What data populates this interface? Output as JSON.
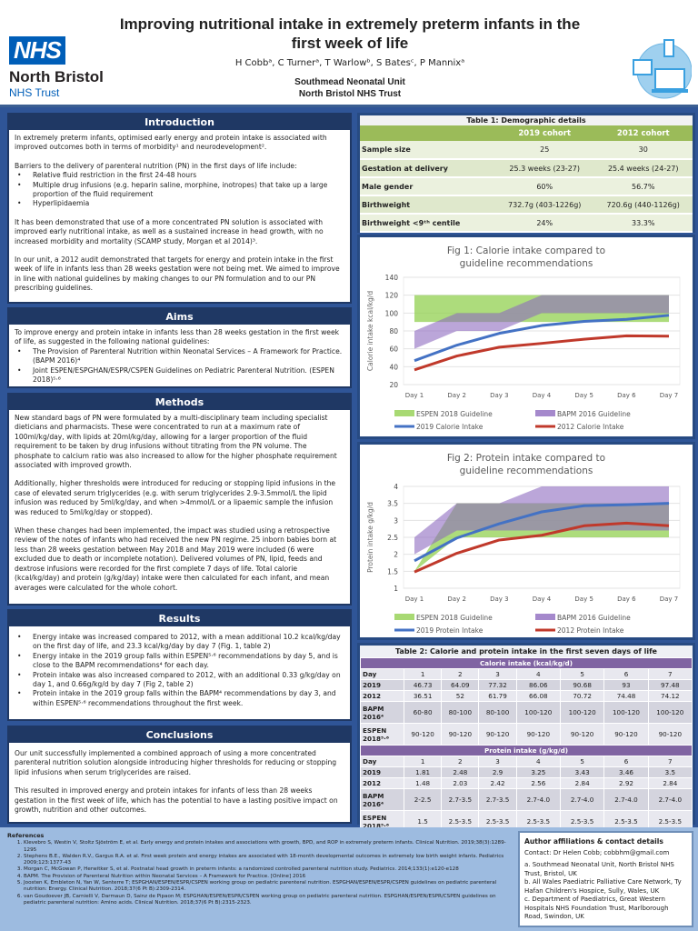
{
  "header": {
    "title": "Improving nutritional intake in extremely preterm infants in the first week of life",
    "authors": "H Cobbᵃ, C Turnerᵃ, T Warlowᵇ, S Batesᶜ, P Mannixᵃ",
    "unit_line1": "Southmead Neonatal Unit",
    "unit_line2": "North Bristol NHS Trust",
    "logo_nhs": "NHS",
    "logo_org": "North Bristol",
    "logo_trust": "NHS Trust"
  },
  "introduction": {
    "heading": "Introduction",
    "p1": "In extremely preterm infants, optimised early energy and protein intake is associated with improved outcomes both in terms of morbidity¹ and neurodevelopment².",
    "p2": "Barriers to the delivery of parenteral nutrition (PN) in the first days of life include:",
    "bullets": [
      "Relative fluid restriction in the first 24-48 hours",
      "Multiple drug infusions (e.g. heparin saline, morphine, inotropes) that take up a large proportion of the fluid requirement",
      "Hyperlipidaemia"
    ],
    "p3": "It has been demonstrated that use of a more concentrated PN solution is associated with improved early nutritional intake, as well as a sustained increase in head growth, with no increased morbidity and mortality (SCAMP study, Morgan et al 2014)³.",
    "p4": "In our unit, a 2012 audit demonstrated that targets for energy and protein intake in the first week of life in infants less than 28 weeks gestation were not being met. We aimed to improve in line with national guidelines by making changes to our PN formulation and to our PN prescribing guidelines."
  },
  "aims": {
    "heading": "Aims",
    "p1": "To improve energy and protein intake in infants less than 28 weeks gestation in the first week of life, as suggested in the following national guidelines:",
    "bullets": [
      "The Provision of Parenteral Nutrition within Neonatal Services – A Framework for Practice. (BAPM 2016)⁴",
      "Joint ESPEN/ESPGHAN/ESPR/CSPEN Guidelines on Pediatric Parenteral Nutrition. (ESPEN 2018)⁵·⁶"
    ]
  },
  "methods": {
    "heading": "Methods",
    "p1": "New standard bags of PN were formulated by a multi-disciplinary team including specialist dieticians and pharmacists. These were concentrated to run at a maximum rate of 100ml/kg/day, with lipids at 20ml/kg/day, allowing for a larger proportion of the fluid requirement to be taken by drug infusions without titrating from the PN volume. The phosphate to calcium ratio was also increased to allow for the higher phosphate requirement associated with improved growth.",
    "p2": "Additionally, higher thresholds were introduced for reducing or stopping lipid infusions in the case of elevated serum triglycerides (e.g. with serum triglycerides 2.9-3.5mmol/L the lipid infusion was reduced by 5ml/kg/day, and when >4mmol/L or a lipaemic sample the infusion was reduced to 5ml/kg/day or stopped).",
    "p3": "When these changes had been implemented, the impact was studied using a retrospective review of the notes of infants who had received the new PN regime. 25 inborn babies born at less than 28 weeks gestation between May 2018 and May 2019 were included (6 were excluded due to death or incomplete notation). Delivered volumes of PN, lipid, feeds and dextrose infusions were recorded for the first complete 7 days of life. Total calorie (kcal/kg/day) and protein (g/kg/day) intake were then calculated for each infant, and mean averages were calculated for the whole cohort."
  },
  "results": {
    "heading": "Results",
    "bullets": [
      "Energy intake was increased compared to 2012, with a mean additional 10.2 kcal/kg/day on the first day of life, and 23.3 kcal/kg/day by day 7 (Fig. 1, table 2)",
      "Energy intake in the 2019 group falls within ESPEN⁵·⁶ recommendations by day 5, and is close to the BAPM recommendations⁴ for each day.",
      "Protein intake was also increased compared to 2012, with an additional 0.33 g/kg/day on day 1, and 0.66g/kg/d by day 7 (Fig 2, table 2)",
      "Protein intake in the 2019 group falls within the BAPM⁴ recommendations by day 3, and within ESPEN⁵·⁶ recommendations throughout the first week."
    ]
  },
  "conclusions": {
    "heading": "Conclusions",
    "p1": "Our unit successfully implemented a combined approach of using a more concentrated parenteral nutrition solution alongside introducing higher thresholds for reducing or stopping lipid infusions when serum triglycerides are raised.",
    "p2": "This resulted in improved energy and protein intakes for infants of less than 28 weeks gestation in the first week of life, which has the potential to have a lasting positive impact on growth, nutrition and other outcomes."
  },
  "table1": {
    "caption": "Table 1: Demographic details",
    "columns": [
      "",
      "2019 cohort",
      "2012 cohort"
    ],
    "rows": [
      [
        "Sample size",
        "25",
        "30"
      ],
      [
        "Gestation at delivery",
        "25.3 weeks (23-27)",
        "25.4 weeks (24-27)"
      ],
      [
        "Male gender",
        "60%",
        "56.7%"
      ],
      [
        "Birthweight",
        "732.7g (403-1226g)",
        "720.6g (440-1126g)"
      ],
      [
        "Birthweight <9ᵗʰ centile",
        "24%",
        "33.3%"
      ]
    ]
  },
  "table2": {
    "caption": "Table 2: Calorie and protein intake in the first seven days of life",
    "calorie": {
      "subheading": "Calorie intake (kcal/kg/d)",
      "rows": [
        [
          "Day",
          "1",
          "2",
          "3",
          "4",
          "5",
          "6",
          "7"
        ],
        [
          "2019",
          "46.73",
          "64.09",
          "77.32",
          "86.06",
          "90.68",
          "93",
          "97.48"
        ],
        [
          "2012",
          "36.51",
          "52",
          "61.79",
          "66.08",
          "70.72",
          "74.48",
          "74.12"
        ],
        [
          "BAPM 2016⁴",
          "60-80",
          "80-100",
          "80-100",
          "100-120",
          "100-120",
          "100-120",
          "100-120"
        ],
        [
          "ESPEN 2018⁵·⁶",
          "90-120",
          "90-120",
          "90-120",
          "90-120",
          "90-120",
          "90-120",
          "90-120"
        ]
      ]
    },
    "protein": {
      "subheading": "Protein intake (g/kg/d)",
      "rows": [
        [
          "Day",
          "1",
          "2",
          "3",
          "4",
          "5",
          "6",
          "7"
        ],
        [
          "2019",
          "1.81",
          "2.48",
          "2.9",
          "3.25",
          "3.43",
          "3.46",
          "3.5"
        ],
        [
          "2012",
          "1.48",
          "2.03",
          "2.42",
          "2.56",
          "2.84",
          "2.92",
          "2.84"
        ],
        [
          "BAPM 2016⁴",
          "2-2.5",
          "2.7-3.5",
          "2.7-3.5",
          "2.7-4.0",
          "2.7-4.0",
          "2.7-4.0",
          "2.7-4.0"
        ],
        [
          "ESPEN 2018⁵·⁶",
          "1.5",
          "2.5-3.5",
          "2.5-3.5",
          "2.5-3.5",
          "2.5-3.5",
          "2.5-3.5",
          "2.5-3.5"
        ]
      ]
    }
  },
  "chart_data": [
    {
      "type": "area",
      "title": "Fig 1: Calorie intake compared to guideline recommendations",
      "ylabel": "Calorie intake kcal/kg/d",
      "xlabel": "",
      "categories": [
        "Day 1",
        "Day 2",
        "Day 3",
        "Day 4",
        "Day 5",
        "Day 6",
        "Day 7"
      ],
      "ylim": [
        20,
        140
      ],
      "yticks": [
        20,
        40,
        60,
        80,
        100,
        120,
        140
      ],
      "grid": true,
      "legend": "bottom",
      "bands": [
        {
          "name": "ESPEN 2018 Guideline",
          "low": [
            90,
            90,
            90,
            90,
            90,
            90,
            90
          ],
          "high": [
            120,
            120,
            120,
            120,
            120,
            120,
            120
          ],
          "color": "#92d050"
        },
        {
          "name": "BAPM 2016 Guideline",
          "low": [
            60,
            80,
            80,
            100,
            100,
            100,
            100
          ],
          "high": [
            80,
            100,
            100,
            120,
            120,
            120,
            120
          ],
          "color": "#8e6bbf"
        }
      ],
      "series": [
        {
          "name": "2019 Calorie Intake",
          "values": [
            46.73,
            64.09,
            77.32,
            86.06,
            90.68,
            93,
            97.48
          ],
          "color": "#4472c4"
        },
        {
          "name": "2012 Calorie Intake",
          "values": [
            36.51,
            52,
            61.79,
            66.08,
            70.72,
            74.48,
            74.12
          ],
          "color": "#c0392b"
        }
      ]
    },
    {
      "type": "area",
      "title": "Fig 2: Protein intake compared to guideline recommendations",
      "ylabel": "Protein intake g/kg/d",
      "xlabel": "",
      "categories": [
        "Day 1",
        "Day 2",
        "Day 3",
        "Day 4",
        "Day 5",
        "Day 6",
        "Day 7"
      ],
      "ylim": [
        1,
        4
      ],
      "yticks": [
        1,
        1.5,
        2,
        2.5,
        3,
        3.5,
        4
      ],
      "grid": true,
      "legend": "bottom",
      "bands": [
        {
          "name": "ESPEN 2018 Guideline",
          "low": [
            1.5,
            2.5,
            2.5,
            2.5,
            2.5,
            2.5,
            2.5
          ],
          "high": [
            1.5,
            3.5,
            3.5,
            3.5,
            3.5,
            3.5,
            3.5
          ],
          "color": "#92d050"
        },
        {
          "name": "BAPM 2016 Guideline",
          "low": [
            2,
            2.7,
            2.7,
            2.7,
            2.7,
            2.7,
            2.7
          ],
          "high": [
            2.5,
            3.5,
            3.5,
            4,
            4,
            4,
            4
          ],
          "color": "#8e6bbf"
        }
      ],
      "series": [
        {
          "name": "2019 Protein Intake",
          "values": [
            1.81,
            2.48,
            2.9,
            3.25,
            3.43,
            3.46,
            3.5
          ],
          "color": "#4472c4"
        },
        {
          "name": "2012 Protein Intake",
          "values": [
            1.48,
            2.03,
            2.42,
            2.56,
            2.84,
            2.92,
            2.84
          ],
          "color": "#c0392b"
        }
      ]
    }
  ],
  "references": {
    "heading": "References",
    "items": [
      "Klevebro S, Westin V, Stoltz Sjöström E, et al. Early energy and protein intakes and associations with growth, BPD, and ROP in extremely preterm infants. Clinical Nutrition. 2019;38(3):1289-1295",
      "Stephens B.E., Walden R.V., Gargus R.A. et al. First week protein and energy intakes are associated with 18-month developmental outcomes in extremely low birth weight infants. Pediatrics 2009;123:1377-43",
      "Morgan C, McGowan P, Herwitker S, et al. Postnatal head growth in preterm infants: a randomized controlled parenteral nutrition study. Pediatrics. 2014;133(1):e120-e128",
      "BAPM. The Provision of Parenteral Nutrition within Neonatal Services – A Framework for Practice. [Online] 2016",
      "Joosten K, Embleton N, Yan W, Senterre T; ESPGHAN/ESPEN/ESPR/CSPEN working group on pediatric parenteral nutrition. ESPGHAN/ESPEN/ESPR/CSPEN guidelines on pediatric parenteral nutrition: Energy. Clinical Nutrition. 2018;37(6 Pt B):2309-2314.",
      "van Goudoever JB, Carnielli V, Darmaun D, Sainz de Pipaon M; ESPGHAN/ESPEN/ESPR/CSPEN working group on pediatric parenteral nutrition. ESPGHAN/ESPEN/ESPR/CSPEN guidelines on pediatric parenteral nutrition: Amino acids. Clinical Nutrition. 2018;37(6 Pt B):2315-2323."
    ]
  },
  "affiliations": {
    "heading": "Author affiliations & contact details",
    "contact": "Contact: Dr Helen Cobb; cobbhm@gmail.com",
    "a": "a. Southmead Neonatal Unit, North Bristol NHS Trust, Bristol, UK",
    "b": "b. All Wales Paediatric Palliative Care Network, Ty Hafan Children's Hospice, Sully, Wales, UK",
    "c": "c. Department of Paediatrics, Great Western Hospitals NHS Foundation Trust, Marlborough Road, Swindon, UK"
  }
}
